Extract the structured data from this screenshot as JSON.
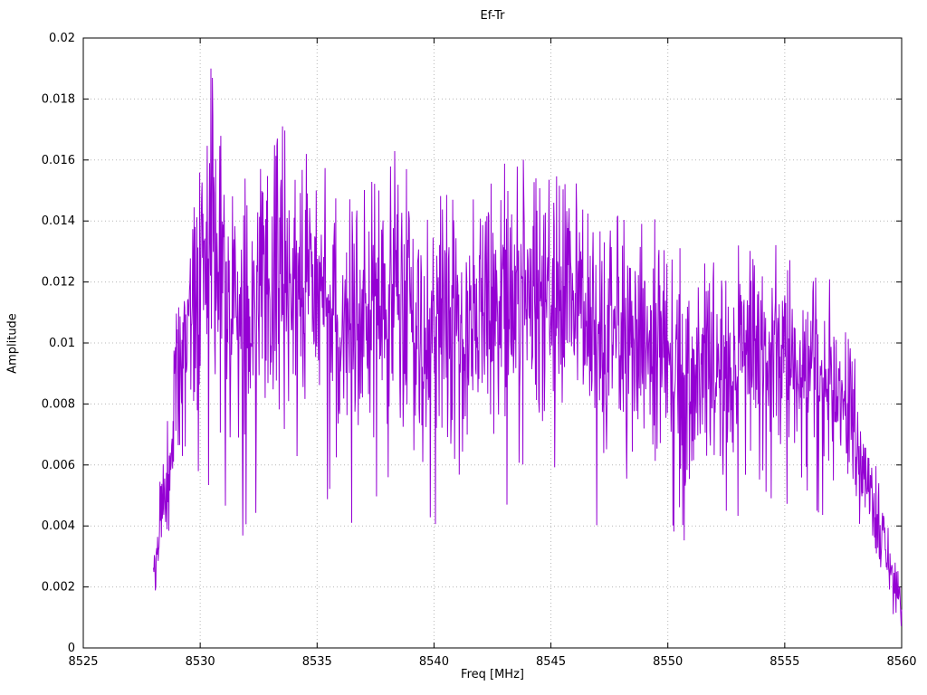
{
  "chart_data": {
    "type": "line",
    "title": "Ef-Tr",
    "xlabel": "Freq [MHz]",
    "ylabel": "Amplitude",
    "xlim": [
      8525,
      8560
    ],
    "ylim": [
      0,
      0.02
    ],
    "xticks": [
      8525,
      8530,
      8535,
      8540,
      8545,
      8550,
      8555,
      8560
    ],
    "xtick_labels": [
      "8525",
      "8530",
      "8535",
      "8540",
      "8545",
      "8550",
      "8555",
      "8560"
    ],
    "yticks": [
      0,
      0.002,
      0.004,
      0.006,
      0.008,
      0.01,
      0.012,
      0.014,
      0.016,
      0.018,
      0.02
    ],
    "ytick_labels": [
      "0",
      "0.002",
      "0.004",
      "0.006",
      "0.008",
      "0.01",
      "0.012",
      "0.014",
      "0.016",
      "0.018",
      "0.02"
    ],
    "grid": true,
    "legend": "none",
    "line_color": "#9400d3",
    "grid_color": "#b8b8b8",
    "border_color": "#000000",
    "signal": {
      "description": "dense noisy amplitude spectrum, nonzero from 8528 to 8560 MHz, plateau ~0.009-0.013 with excursions 0.004-0.019, steep rise at 8528-8530 and rolloff after 8557.5",
      "x_start": 8528.0,
      "x_end": 8560.0,
      "step": 0.02,
      "seed": 42,
      "peak_value": 0.019,
      "peak_freq": 8530.5,
      "envelope_x": [
        8528.0,
        8528.3,
        8528.7,
        8529.0,
        8529.5,
        8530.0,
        8530.5,
        8531.0,
        8532.0,
        8533.0,
        8533.5,
        8534.0,
        8535.0,
        8536.0,
        8537.0,
        8538.0,
        8538.8,
        8539.5,
        8540.5,
        8541.5,
        8542.5,
        8543.5,
        8544.0,
        8545.0,
        8546.0,
        8547.0,
        8548.0,
        8549.0,
        8550.0,
        8551.0,
        8552.0,
        8553.0,
        8554.0,
        8555.0,
        8556.0,
        8557.0,
        8557.5,
        8558.0,
        8558.5,
        8559.0,
        8559.5,
        8560.0
      ],
      "envelope_mean": [
        0.0026,
        0.004,
        0.006,
        0.0085,
        0.0105,
        0.0125,
        0.013,
        0.0115,
        0.0105,
        0.012,
        0.0125,
        0.0125,
        0.0118,
        0.0105,
        0.011,
        0.0112,
        0.0115,
        0.01,
        0.0108,
        0.0103,
        0.011,
        0.0118,
        0.011,
        0.0115,
        0.0115,
        0.0102,
        0.01,
        0.0102,
        0.01,
        0.0085,
        0.009,
        0.0098,
        0.0097,
        0.0092,
        0.009,
        0.0092,
        0.0082,
        0.007,
        0.0058,
        0.004,
        0.0024,
        0.0012
      ],
      "envelope_spread": [
        0.0004,
        0.0012,
        0.0018,
        0.0022,
        0.0028,
        0.0032,
        0.004,
        0.0035,
        0.003,
        0.0038,
        0.0036,
        0.0034,
        0.003,
        0.0028,
        0.003,
        0.003,
        0.0034,
        0.003,
        0.003,
        0.0028,
        0.003,
        0.003,
        0.0032,
        0.003,
        0.0028,
        0.0028,
        0.003,
        0.0026,
        0.0026,
        0.0028,
        0.0026,
        0.0024,
        0.0024,
        0.0024,
        0.0022,
        0.0026,
        0.0022,
        0.0018,
        0.0016,
        0.0012,
        0.0008,
        0.0006
      ]
    }
  }
}
